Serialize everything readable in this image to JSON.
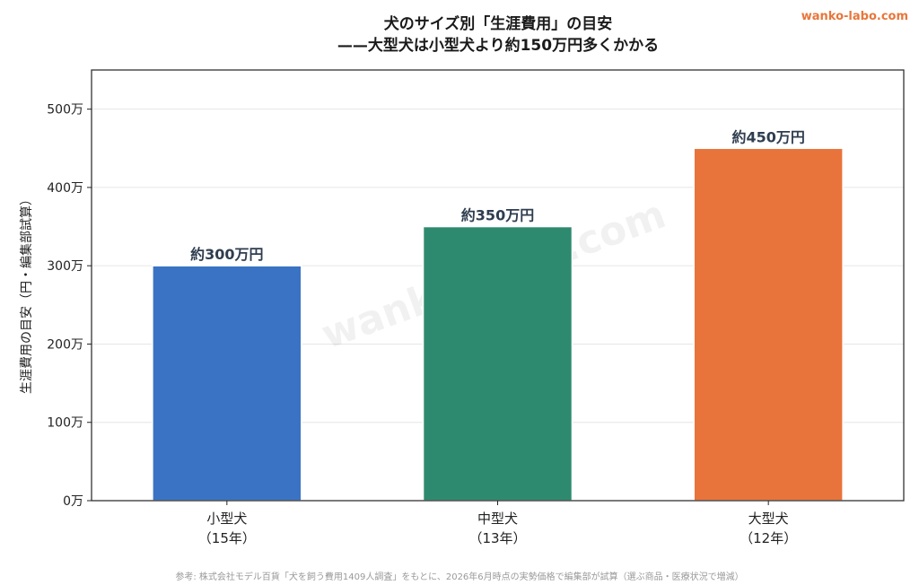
{
  "brand": "wanko-labo.com",
  "watermark": "wanko-labo.com",
  "footnote": "参考: 株式会社モデル百貨「犬を飼う費用1409人調査」をもとに、2026年6月時点の実勢価格で編集部が試算（選ぶ商品・医療状況で増減）",
  "chart_data": {
    "type": "bar",
    "title": "犬のサイズ別「生涯費用」の目安",
    "subtitle": "——大型犬は小型犬より約150万円多くかかる",
    "ylabel": "生涯費用の目安（円・編集部試算）",
    "ylim": [
      0,
      550
    ],
    "yticks": [
      0,
      100,
      200,
      300,
      400,
      500
    ],
    "ytick_labels": [
      "0万",
      "100万",
      "200万",
      "300万",
      "400万",
      "500万"
    ],
    "grid": true,
    "categories": [
      {
        "name": "小型犬",
        "sub": "（15年）"
      },
      {
        "name": "中型犬",
        "sub": "（13年）"
      },
      {
        "name": "大型犬",
        "sub": "（12年）"
      }
    ],
    "values": [
      300,
      350,
      450
    ],
    "data_labels": [
      "約300万円",
      "約350万円",
      "約450万円"
    ],
    "colors": [
      "#3a73c4",
      "#2e8a6e",
      "#e8743b"
    ]
  }
}
